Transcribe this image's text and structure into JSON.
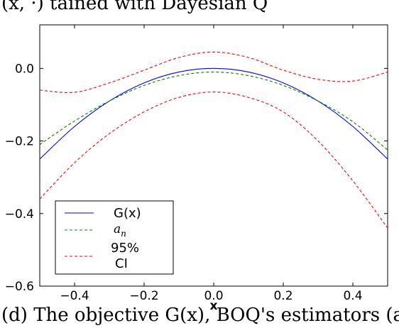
{
  "captions": {
    "top": "(x, ·) tained with Dayesian Q",
    "bottom": "(d) The objective G(x), BOQ's estimators (a"
  },
  "chart_data": {
    "type": "line",
    "xlabel": "x",
    "ylabel": "",
    "title": "",
    "xlim": [
      -0.5,
      0.5
    ],
    "ylim": [
      -0.6,
      0.12
    ],
    "x_ticks": [
      "−0.4",
      "−0.2",
      "0.0",
      "0.2",
      "0.4"
    ],
    "x_tick_values": [
      -0.4,
      -0.2,
      0.0,
      0.2,
      0.4
    ],
    "y_ticks": [
      "0.0",
      "−0.2",
      "−0.4",
      "−0.6"
    ],
    "y_tick_values": [
      0.0,
      -0.2,
      -0.4,
      -0.6
    ],
    "grid": false,
    "legend_position": "lower-left",
    "series": [
      {
        "name": "G(x)",
        "color": "#0000ff",
        "dash": "solid",
        "x": [
          -0.5,
          -0.4,
          -0.3,
          -0.2,
          -0.1,
          0.0,
          0.1,
          0.2,
          0.3,
          0.4,
          0.5
        ],
        "y": [
          -0.25,
          -0.16,
          -0.09,
          -0.04,
          -0.01,
          0.0,
          -0.01,
          -0.04,
          -0.09,
          -0.16,
          -0.25
        ]
      },
      {
        "name": "a_n",
        "color": "#008000",
        "dash": "dashed",
        "x": [
          -0.5,
          -0.4,
          -0.3,
          -0.2,
          -0.1,
          0.0,
          0.1,
          0.2,
          0.3,
          0.4,
          0.5
        ],
        "y": [
          -0.21,
          -0.145,
          -0.09,
          -0.047,
          -0.02,
          -0.01,
          -0.02,
          -0.047,
          -0.09,
          -0.147,
          -0.225
        ]
      },
      {
        "name": "95% CI",
        "color": "#ff0000",
        "dash": "dashed",
        "x": [
          -0.5,
          -0.4,
          -0.3,
          -0.2,
          -0.1,
          0.0,
          0.1,
          0.2,
          0.3,
          0.4,
          0.5
        ],
        "y": [
          -0.06,
          -0.066,
          -0.04,
          -0.005,
          0.03,
          0.045,
          0.03,
          -0.005,
          -0.03,
          -0.035,
          -0.01
        ]
      },
      {
        "name": "95% CI lower",
        "color": "#ff0000",
        "dash": "dashed",
        "x": [
          -0.5,
          -0.4,
          -0.3,
          -0.2,
          -0.1,
          0.0,
          0.1,
          0.2,
          0.3,
          0.4,
          0.5
        ],
        "y": [
          -0.36,
          -0.26,
          -0.18,
          -0.12,
          -0.08,
          -0.065,
          -0.08,
          -0.12,
          -0.2,
          -0.31,
          -0.44
        ]
      }
    ],
    "legend": [
      {
        "label": "G(x)",
        "color": "#0000ff",
        "dash": "solid"
      },
      {
        "label_math": "a",
        "label_sub": "n",
        "color": "#008000",
        "dash": "dashed"
      },
      {
        "label_line1": "95%",
        "label_line2": "CI",
        "color": "#ff0000",
        "dash": "dashed"
      }
    ]
  }
}
